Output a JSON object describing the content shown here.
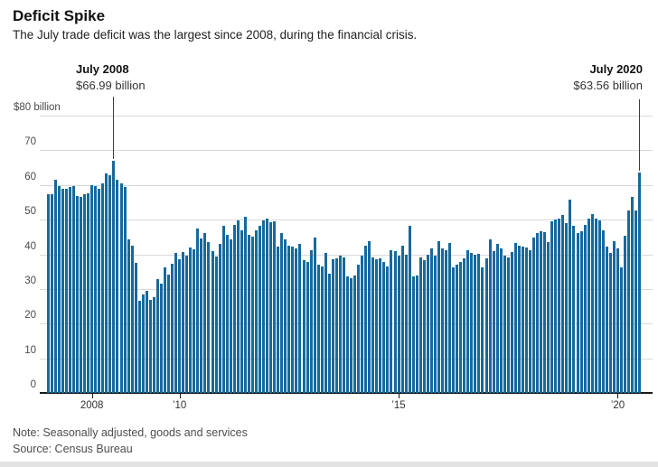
{
  "header": {
    "title": "Deficit Spike",
    "subtitle": "The July trade deficit was the largest since 2008, during the financial crisis."
  },
  "footer": {
    "note": "Note: Seasonally adjusted, goods and services",
    "source": "Source: Census Bureau"
  },
  "colors": {
    "bar": "#17699C",
    "grid": "#D9D9D9",
    "axis": "#1A1A1A",
    "annotation_line": "#3F3F3F"
  },
  "chart_data": {
    "type": "bar",
    "title": "Deficit Spike",
    "subtitle": "The July trade deficit was the largest since 2008, during the financial crisis.",
    "unit": "billion USD",
    "start_month": "2007-01",
    "end_month": "2020-07",
    "ylim": [
      0,
      80
    ],
    "grid": true,
    "y_ticks": [
      0,
      10,
      20,
      30,
      40,
      50,
      60,
      70,
      80
    ],
    "y_top_label": "$80 billion",
    "x_ticks": [
      {
        "label": "2008",
        "month_index": 12
      },
      {
        "label": "’10",
        "month_index": 36
      },
      {
        "label": "’15",
        "month_index": 96
      },
      {
        "label": "’20",
        "month_index": 156
      }
    ],
    "annotations": [
      {
        "label": "July 2008",
        "value_label": "$66.99 billion",
        "month_index": 18,
        "value": 66.99
      },
      {
        "label": "July 2020",
        "value_label": "$63.56 billion",
        "month_index": 162,
        "value": 63.56
      }
    ],
    "values": [
      57.2,
      57.4,
      61.4,
      59.6,
      59.0,
      58.9,
      59.4,
      59.8,
      56.8,
      56.5,
      57.2,
      57.7,
      60.0,
      59.6,
      58.8,
      60.5,
      63.3,
      62.9,
      66.99,
      61.6,
      60.5,
      59.4,
      44.2,
      42.5,
      37.5,
      26.5,
      28.4,
      29.4,
      26.8,
      27.7,
      32.9,
      31.6,
      36.2,
      34.2,
      37.2,
      40.3,
      38.5,
      40.7,
      39.7,
      42.0,
      41.4,
      47.5,
      44.6,
      46.1,
      43.5,
      41.0,
      39.4,
      43.0,
      48.1,
      45.5,
      44.3,
      48.5,
      49.8,
      47.0,
      50.9,
      45.7,
      45.2,
      46.9,
      48.3,
      49.8,
      50.2,
      49.3,
      49.6,
      42.2,
      46.1,
      44.3,
      42.6,
      42.3,
      41.7,
      43.0,
      38.3,
      37.8,
      41.3,
      44.9,
      37.0,
      36.5,
      40.4,
      34.5,
      38.6,
      38.9,
      39.6,
      39.0,
      33.6,
      33.2,
      34.0,
      36.9,
      39.6,
      42.6,
      43.7,
      39.1,
      38.5,
      38.7,
      37.8,
      36.5,
      41.3,
      40.9,
      39.6,
      42.6,
      40.0,
      48.3,
      33.6,
      33.9,
      39.1,
      38.3,
      40.0,
      41.7,
      39.6,
      43.7,
      41.7,
      41.3,
      43.2,
      36.1,
      37.0,
      37.8,
      38.9,
      41.3,
      40.4,
      40.0,
      40.2,
      36.1,
      38.9,
      44.3,
      40.9,
      43.0,
      41.7,
      39.6,
      39.1,
      40.6,
      43.2,
      42.6,
      42.3,
      41.9,
      41.3,
      44.8,
      46.1,
      46.7,
      46.5,
      43.5,
      49.4,
      50.0,
      50.4,
      51.3,
      49.0,
      55.8,
      48.3,
      46.1,
      46.7,
      48.5,
      50.4,
      51.5,
      50.4,
      49.7,
      47.0,
      42.2,
      40.4,
      43.9,
      41.7,
      36.1,
      45.4,
      52.6,
      56.5,
      52.6,
      63.56
    ]
  }
}
